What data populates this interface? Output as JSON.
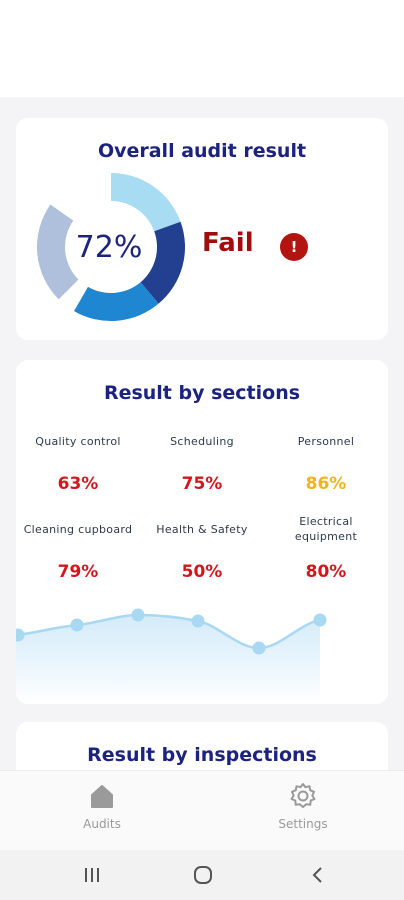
{
  "overall": {
    "title": "Overall audit result",
    "percent_label": "72%",
    "percent": 72,
    "status": "Fail",
    "status_badge": "!",
    "colors": {
      "fail": "#a00d0d",
      "segments": [
        "#a8dcf3",
        "#233f8f",
        "#1f86d1",
        "#afc0dd"
      ]
    }
  },
  "sections": {
    "title": "Result by sections",
    "items": [
      {
        "label": "Quality control",
        "value": "63%",
        "color": "#d4161c"
      },
      {
        "label": "Scheduling",
        "value": "75%",
        "color": "#d4161c"
      },
      {
        "label": "Personnel",
        "value": "86%",
        "color": "#f2b416"
      },
      {
        "label": "Cleaning cupboard",
        "value": "79%",
        "color": "#d4161c"
      },
      {
        "label": "Health & Safety",
        "value": "50%",
        "color": "#d4161c"
      },
      {
        "label": "Electrical equipment",
        "value": "80%",
        "color": "#d4161c"
      }
    ]
  },
  "inspections": {
    "title": "Result by inspections"
  },
  "nav": {
    "audits_label": "Audits",
    "settings_label": "Settings"
  }
}
